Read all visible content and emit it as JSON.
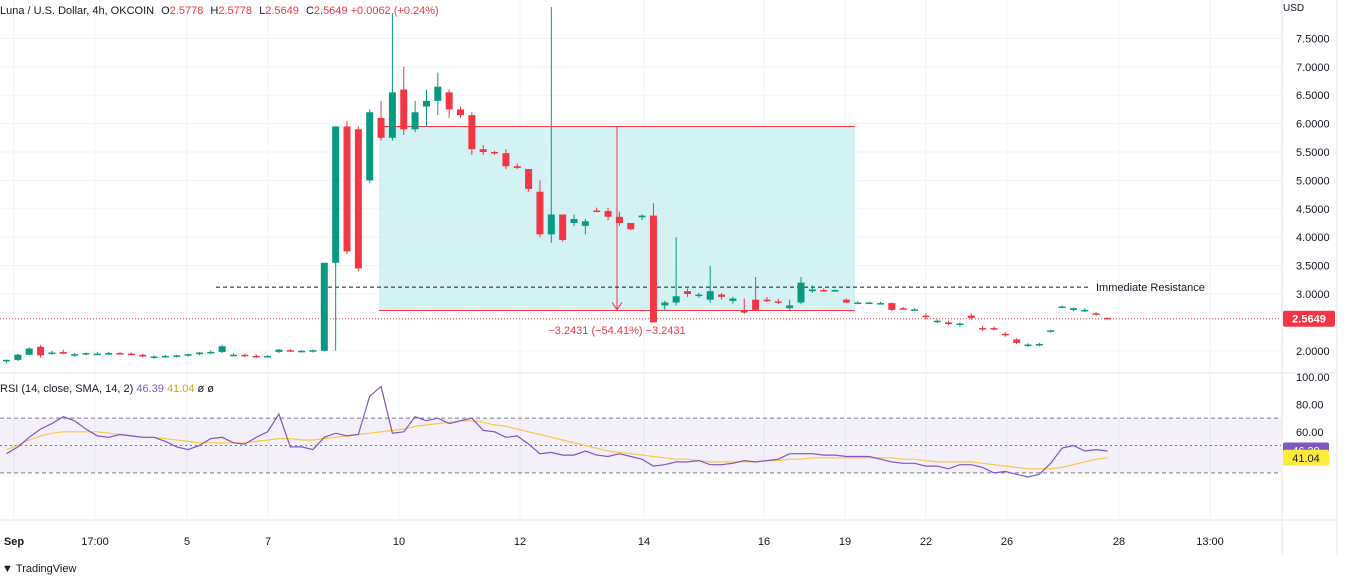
{
  "header": {
    "symbol": "Luna / U.S. Dollar, 4h, OKCOIN",
    "o_label": "O",
    "o_value": "2.5778",
    "h_label": "H",
    "h_value": "2.5778",
    "l_label": "L",
    "l_value": "2.5649",
    "c_label": "C",
    "c_value": "2.5649",
    "change": "+0.0062 (+0.24%)"
  },
  "currency": "USD",
  "price_axis": [
    "7.5000",
    "7.0000",
    "6.5000",
    "6.0000",
    "5.5000",
    "5.0000",
    "4.5000",
    "4.0000",
    "3.5000",
    "3.0000",
    "2.0000"
  ],
  "rsi_axis": [
    "100.00",
    "80.00",
    "60.00"
  ],
  "x_axis": [
    "Sep",
    "17:00",
    "5",
    "7",
    "10",
    "12",
    "14",
    "16",
    "19",
    "22",
    "26",
    "28",
    "13:00"
  ],
  "last_price_badge": "2.5649",
  "rsi_badges": {
    "rsi": "46.39",
    "sma": "41.04"
  },
  "rsi_legend": {
    "label": "RSI (14, close, SMA, 14, 2)",
    "rsi": "46.39",
    "sma": "41.04",
    "extra": "ø ø"
  },
  "annotations": {
    "resistance": "Immediate Resistance",
    "measure": "−3.2431 (−54.41%) −3.2431"
  },
  "watermark": "TradingView",
  "colors": {
    "up": "#089981",
    "down": "#f23645",
    "rsi": "#7e57c2",
    "sma": "#f7c948",
    "box": "#cdeff2",
    "box_line": "#f23645"
  },
  "chart_data": {
    "type": "candlestick",
    "title": "Luna / U.S. Dollar, 4h, OKCOIN",
    "y_label": "USD",
    "price_range": [
      1.5,
      8.2
    ],
    "resistance_level": 3.12,
    "measure_box": {
      "top": 5.95,
      "bottom": 2.71,
      "change": -3.2431,
      "change_pct": -54.41
    },
    "candles": [
      [
        1.82,
        1.85,
        1.78,
        1.84
      ],
      [
        1.84,
        1.95,
        1.82,
        1.93
      ],
      [
        1.93,
        2.06,
        1.92,
        2.04
      ],
      [
        2.07,
        2.1,
        1.88,
        1.92
      ],
      [
        1.96,
        2.0,
        1.93,
        1.97
      ],
      [
        1.98,
        2.02,
        1.94,
        1.95
      ],
      [
        1.93,
        1.96,
        1.9,
        1.94
      ],
      [
        1.94,
        1.97,
        1.92,
        1.96
      ],
      [
        1.95,
        1.98,
        1.93,
        1.95
      ],
      [
        1.95,
        1.98,
        1.93,
        1.96
      ],
      [
        1.96,
        1.98,
        1.93,
        1.95
      ],
      [
        1.95,
        1.97,
        1.92,
        1.93
      ],
      [
        1.93,
        1.95,
        1.88,
        1.9
      ],
      [
        1.88,
        1.92,
        1.86,
        1.9
      ],
      [
        1.9,
        1.93,
        1.88,
        1.91
      ],
      [
        1.9,
        1.93,
        1.88,
        1.92
      ],
      [
        1.92,
        1.95,
        1.9,
        1.94
      ],
      [
        1.94,
        1.98,
        1.92,
        1.97
      ],
      [
        1.97,
        2.01,
        1.94,
        1.98
      ],
      [
        1.98,
        2.1,
        1.96,
        2.08
      ],
      [
        1.93,
        1.96,
        1.91,
        1.93
      ],
      [
        1.93,
        1.95,
        1.89,
        1.92
      ],
      [
        1.91,
        1.94,
        1.87,
        1.9
      ],
      [
        1.9,
        1.92,
        1.88,
        1.91
      ],
      [
        1.98,
        2.03,
        1.96,
        2.02
      ],
      [
        2.01,
        2.03,
        1.98,
        1.99
      ],
      [
        1.99,
        2.01,
        1.97,
        2.0
      ],
      [
        1.99,
        2.02,
        1.97,
        2.01
      ],
      [
        2.0,
        3.55,
        1.99,
        3.55
      ],
      [
        3.55,
        5.95,
        2.0,
        5.95
      ],
      [
        5.95,
        6.05,
        3.7,
        3.75
      ],
      [
        5.9,
        5.95,
        3.4,
        3.45
      ],
      [
        5.0,
        6.25,
        4.95,
        6.2
      ],
      [
        6.1,
        6.4,
        5.7,
        5.75
      ],
      [
        5.75,
        7.95,
        5.7,
        6.55
      ],
      [
        6.6,
        7.0,
        5.8,
        5.9
      ],
      [
        5.9,
        6.4,
        5.85,
        6.2
      ],
      [
        6.3,
        6.6,
        5.95,
        6.4
      ],
      [
        6.4,
        6.9,
        6.15,
        6.65
      ],
      [
        6.55,
        6.6,
        6.1,
        6.25
      ],
      [
        6.25,
        6.3,
        6.1,
        6.15
      ],
      [
        6.15,
        6.2,
        5.45,
        5.55
      ],
      [
        5.55,
        5.62,
        5.45,
        5.5
      ],
      [
        5.5,
        5.52,
        5.45,
        5.48
      ],
      [
        5.48,
        5.55,
        5.2,
        5.25
      ],
      [
        5.25,
        5.3,
        5.2,
        5.22
      ],
      [
        5.2,
        5.2,
        4.8,
        4.85
      ],
      [
        4.8,
        5.0,
        4.0,
        4.05
      ],
      [
        4.05,
        8.05,
        3.9,
        4.4
      ],
      [
        4.4,
        4.4,
        3.92,
        3.95
      ],
      [
        4.25,
        4.4,
        4.2,
        4.32
      ],
      [
        4.2,
        4.32,
        4.05,
        4.28
      ],
      [
        4.47,
        4.52,
        4.44,
        4.46
      ],
      [
        4.46,
        4.52,
        4.3,
        4.36
      ],
      [
        4.36,
        4.45,
        4.2,
        4.25
      ],
      [
        4.25,
        4.25,
        4.12,
        4.14
      ],
      [
        4.35,
        4.4,
        4.3,
        4.38
      ],
      [
        4.38,
        4.6,
        2.5,
        2.5
      ],
      [
        2.8,
        2.88,
        2.7,
        2.85
      ],
      [
        2.85,
        4.0,
        2.8,
        2.96
      ],
      [
        3.05,
        3.1,
        2.95,
        3.0
      ],
      [
        2.97,
        3.02,
        2.93,
        2.99
      ],
      [
        2.9,
        3.5,
        2.85,
        3.05
      ],
      [
        2.99,
        3.02,
        2.9,
        2.95
      ],
      [
        2.88,
        2.95,
        2.83,
        2.92
      ],
      [
        2.7,
        2.92,
        2.65,
        2.68
      ],
      [
        2.9,
        3.3,
        2.72,
        2.72
      ],
      [
        2.9,
        2.95,
        2.86,
        2.88
      ],
      [
        2.87,
        2.92,
        2.82,
        2.86
      ],
      [
        2.75,
        2.9,
        2.72,
        2.8
      ],
      [
        2.85,
        3.3,
        2.82,
        3.2
      ],
      [
        3.05,
        3.15,
        3.02,
        3.08
      ],
      [
        3.07,
        3.1,
        3.04,
        3.06
      ],
      [
        3.06,
        3.08,
        3.04,
        3.07
      ],
      [
        2.9,
        2.92,
        2.84,
        2.85
      ],
      [
        2.84,
        2.87,
        2.82,
        2.85
      ],
      [
        2.84,
        2.86,
        2.82,
        2.85
      ],
      [
        2.84,
        2.86,
        2.82,
        2.84
      ],
      [
        2.84,
        2.85,
        2.7,
        2.72
      ],
      [
        2.75,
        2.77,
        2.73,
        2.74
      ],
      [
        2.73,
        2.75,
        2.7,
        2.73
      ],
      [
        2.62,
        2.66,
        2.55,
        2.6
      ],
      [
        2.52,
        2.55,
        2.49,
        2.53
      ],
      [
        2.5,
        2.53,
        2.45,
        2.47
      ],
      [
        2.46,
        2.5,
        2.42,
        2.48
      ],
      [
        2.62,
        2.66,
        2.55,
        2.58
      ],
      [
        2.4,
        2.44,
        2.35,
        2.38
      ],
      [
        2.4,
        2.43,
        2.36,
        2.39
      ],
      [
        2.3,
        2.33,
        2.25,
        2.28
      ],
      [
        2.2,
        2.22,
        2.12,
        2.14
      ],
      [
        2.1,
        2.13,
        2.07,
        2.11
      ],
      [
        2.1,
        2.14,
        2.08,
        2.12
      ],
      [
        2.35,
        2.37,
        2.32,
        2.36
      ],
      [
        2.77,
        2.8,
        2.76,
        2.78
      ],
      [
        2.72,
        2.76,
        2.7,
        2.75
      ],
      [
        2.7,
        2.75,
        2.68,
        2.72
      ],
      [
        2.66,
        2.68,
        2.62,
        2.65
      ],
      [
        2.58,
        2.58,
        2.56,
        2.56
      ]
    ],
    "rsi_range": [
      0,
      100
    ],
    "rsi_bands": [
      30,
      50,
      70
    ],
    "rsi": [
      44,
      49,
      56,
      62,
      66,
      71,
      68,
      62,
      57,
      56,
      58,
      57,
      56,
      56,
      53,
      49,
      47,
      50,
      55,
      56,
      52,
      51,
      56,
      60,
      73,
      49,
      49,
      47,
      56,
      59,
      57,
      58,
      86,
      93,
      59,
      60,
      71,
      68,
      70,
      66,
      68,
      70,
      61,
      60,
      56,
      57,
      51,
      44,
      45,
      43,
      43,
      46,
      43,
      42,
      44,
      42,
      40,
      35,
      36,
      38,
      38,
      39,
      36,
      36,
      37,
      39,
      38,
      39,
      40,
      44,
      44,
      44,
      43,
      43,
      42,
      42,
      42,
      40,
      38,
      37,
      37,
      35,
      35,
      33,
      36,
      36,
      34,
      30,
      31,
      29,
      27,
      29,
      37,
      48,
      50,
      46,
      47,
      46
    ],
    "sma": [
      47,
      50,
      54,
      57,
      59,
      60,
      60,
      60,
      60,
      59,
      58,
      57,
      56,
      56,
      55,
      54,
      53,
      52,
      52,
      52,
      52,
      52,
      53,
      54,
      55,
      55,
      54,
      54,
      55,
      56,
      57,
      58,
      59,
      60,
      61,
      62,
      64,
      65,
      66,
      67,
      68,
      68,
      67,
      65,
      64,
      62,
      60,
      58,
      56,
      54,
      52,
      50,
      48,
      46,
      45,
      44,
      43,
      42,
      41,
      40,
      40,
      39,
      38,
      38,
      38,
      38,
      38,
      39,
      39,
      40,
      40,
      41,
      41,
      41,
      41,
      41,
      41,
      41,
      41,
      40,
      40,
      39,
      38,
      38,
      38,
      38,
      37,
      36,
      35,
      34,
      33,
      33,
      33,
      34,
      36,
      38,
      40,
      41
    ]
  }
}
